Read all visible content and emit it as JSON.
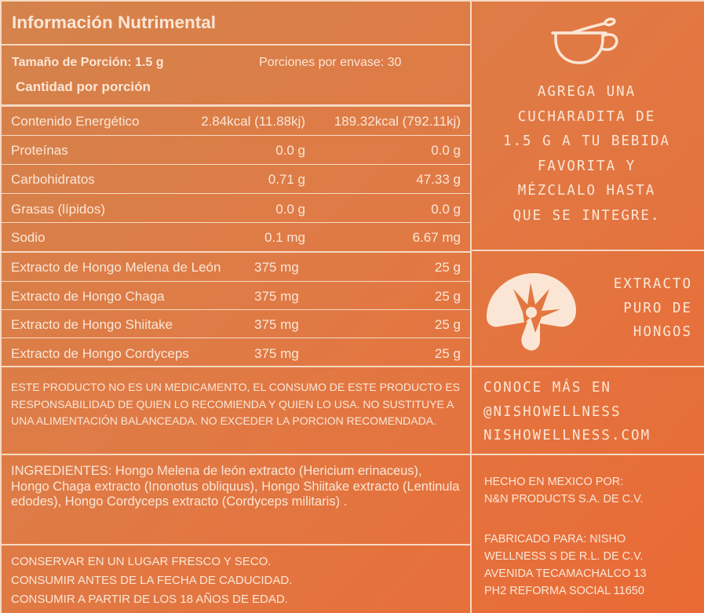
{
  "header": {
    "title": "Información Nutrimental",
    "serving_size": "Tamaño de Porción: 1.5 g",
    "servings_per_container": "Porciones por envase: 30",
    "amount_per_serving": "Cantidad por porción"
  },
  "nutrition_rows": [
    {
      "label": "Contenido Energético",
      "per_portion": "2.84kcal (11.88kj)",
      "total": "189.32kcal (792.11kj)"
    },
    {
      "label": "Proteínas",
      "per_portion": "0.0 g",
      "total": "0.0 g"
    },
    {
      "label": "Carbohidratos",
      "per_portion": "0.71 g",
      "total": "47.33 g"
    },
    {
      "label": "Grasas (lípidos)",
      "per_portion": "0.0 g",
      "total": "0.0 g"
    },
    {
      "label": "Sodio",
      "per_portion": "0.1 mg",
      "total": "6.67 mg"
    },
    {
      "label": "Extracto de Hongo Melena de León",
      "per_portion": "375 mg",
      "total": "25 g"
    },
    {
      "label": "Extracto de Hongo Chaga",
      "per_portion": "375 mg",
      "total": "25 g"
    },
    {
      "label": "Extracto de Hongo Shiitake",
      "per_portion": "375 mg",
      "total": "25 g"
    },
    {
      "label": "Extracto de Hongo Cordyceps",
      "per_portion": "375 mg",
      "total": "25 g"
    }
  ],
  "disclaimer": "ESTE PRODUCTO NO ES UN MEDICAMENTO, EL CONSUMO DE ESTE PRODUCTO ES RESPONSABILIDAD DE QUIEN LO RECOMIENDA Y QUIEN LO USA. NO SUSTITUYE A UNA ALIMENTACIÓN BALANCEADA. NO EXCEDER LA PORCION RECOMENDADA.",
  "ingredients": "INGREDIENTES: Hongo Melena de león extracto (Hericium erinaceus), Hongo Chaga extracto (Inonotus obliquus), Hongo Shiitake extracto (Lentinula edodes), Hongo Cordyceps extracto (Cordyceps militaris) .",
  "storage": [
    "CONSERVAR EN UN LUGAR FRESCO Y SECO.",
    "CONSUMIR ANTES DE LA FECHA DE CADUCIDAD.",
    "CONSUMIR A PARTIR DE LOS 18 AÑOS DE EDAD."
  ],
  "right_panel": {
    "usage_lines": [
      "AGREGA UNA",
      "CUCHARADITA DE",
      "1.5 G A TU BEBIDA",
      "FAVORITA Y",
      "MÉZCLALO HASTA",
      "QUE SE INTEGRE."
    ],
    "extract_lines": [
      "EXTRACTO",
      "PURO DE",
      "HONGOS"
    ],
    "contact_lines": [
      "CONOCE MÁS EN",
      "@NISHOWELLNESS",
      "NISHOWELLNESS.COM"
    ],
    "made_in_lines": [
      "HECHO EN MEXICO POR:",
      "N&N PRODUCTS S.A. DE C.V."
    ],
    "manufactured_for_lines": [
      "FABRICADO PARA: NISHO",
      "WELLNESS S DE R.L. DE C.V.",
      "AVENIDA TECAMACHALCO 13",
      "PH2 REFORMA SOCIAL 11650"
    ]
  },
  "icons": [
    "cup-icon",
    "mushroom-icon"
  ],
  "colors": {
    "line": "#f6d9c3",
    "text": "#fbe6d6",
    "background_start": "#d4834c",
    "background_end": "#ea6a35"
  }
}
